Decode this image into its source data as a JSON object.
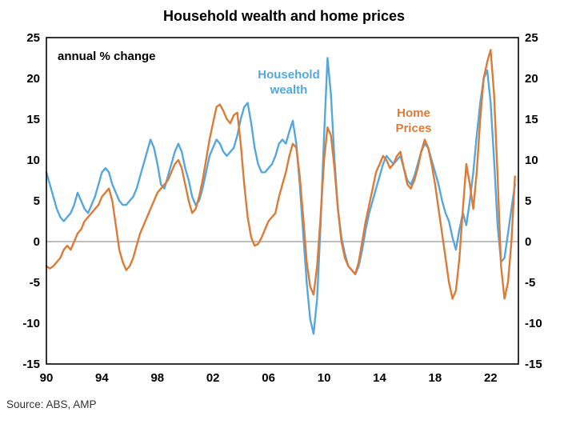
{
  "chart_data": {
    "type": "line",
    "title": "Household wealth and home prices",
    "annotation": "annual % change",
    "source": "Source: ABS, AMP",
    "xlabel": "",
    "ylabel": "",
    "xlim": [
      1990,
      2024
    ],
    "ylim": [
      -15,
      25
    ],
    "grid": false,
    "zero_line": true,
    "x_start": 1990,
    "x_step": 0.25,
    "x_unit": "year (quarterly)",
    "yticks": [
      25,
      20,
      15,
      10,
      5,
      0,
      -5,
      -10,
      -15
    ],
    "xticks": [
      {
        "label": "90",
        "year": 1990
      },
      {
        "label": "94",
        "year": 1994
      },
      {
        "label": "98",
        "year": 1998
      },
      {
        "label": "02",
        "year": 2002
      },
      {
        "label": "06",
        "year": 2006
      },
      {
        "label": "10",
        "year": 2010
      },
      {
        "label": "14",
        "year": 2014
      },
      {
        "label": "18",
        "year": 2018
      },
      {
        "label": "22",
        "year": 2022
      }
    ],
    "series_labels": {
      "household": "Household\nwealth",
      "home": "Home\nPrices"
    },
    "series": [
      {
        "name": "Household wealth",
        "color": "#56A7DC",
        "values": [
          8.5,
          7.0,
          5.5,
          4.0,
          3.0,
          2.5,
          3.0,
          3.5,
          4.5,
          6.0,
          5.0,
          4.0,
          3.5,
          4.5,
          5.5,
          7.0,
          8.5,
          9.0,
          8.5,
          7.0,
          6.0,
          5.0,
          4.5,
          4.5,
          5.0,
          5.5,
          6.5,
          8.0,
          9.5,
          11.0,
          12.5,
          11.5,
          9.5,
          7.0,
          6.5,
          8.0,
          9.5,
          11.0,
          12.0,
          11.0,
          9.0,
          7.5,
          5.5,
          4.5,
          5.0,
          6.5,
          8.5,
          10.5,
          11.5,
          12.5,
          12.0,
          11.0,
          10.5,
          11.0,
          11.5,
          13.0,
          15.0,
          16.5,
          17.0,
          14.5,
          11.5,
          9.5,
          8.5,
          8.5,
          9.0,
          9.5,
          10.5,
          12.0,
          12.5,
          12.0,
          13.5,
          14.8,
          12.0,
          7.0,
          1.0,
          -5.0,
          -9.5,
          -11.3,
          -7.0,
          2.0,
          13.0,
          22.5,
          18.0,
          10.0,
          4.0,
          0.5,
          -1.5,
          -3.0,
          -3.5,
          -4.0,
          -3.0,
          -1.0,
          1.5,
          3.5,
          5.0,
          6.5,
          8.0,
          9.5,
          10.5,
          10.0,
          9.5,
          10.0,
          10.5,
          9.0,
          7.5,
          7.0,
          8.0,
          9.5,
          11.0,
          12.0,
          11.5,
          10.0,
          8.5,
          7.0,
          5.0,
          3.5,
          2.5,
          0.5,
          -1.0,
          1.5,
          3.5,
          2.0,
          5.0,
          8.5,
          13.0,
          17.0,
          20.0,
          21.0,
          17.0,
          10.0,
          2.0,
          -2.5,
          -2.0,
          1.0,
          4.0,
          7.0
        ]
      },
      {
        "name": "Home Prices",
        "color": "#DC7B38",
        "values": [
          -3.0,
          -3.3,
          -3.0,
          -2.5,
          -2.0,
          -1.0,
          -0.5,
          -1.0,
          0.0,
          1.0,
          1.5,
          2.5,
          3.0,
          3.5,
          4.0,
          4.5,
          5.5,
          6.0,
          6.5,
          5.0,
          2.0,
          -1.0,
          -2.5,
          -3.5,
          -3.0,
          -2.0,
          -0.5,
          1.0,
          2.0,
          3.0,
          4.0,
          5.0,
          6.0,
          6.5,
          7.0,
          7.5,
          8.5,
          9.5,
          10.0,
          9.0,
          7.0,
          5.0,
          3.5,
          4.0,
          5.5,
          7.5,
          10.0,
          12.5,
          14.5,
          16.5,
          16.8,
          16.0,
          15.0,
          14.5,
          15.5,
          15.8,
          12.0,
          7.0,
          3.0,
          0.5,
          -0.5,
          -0.3,
          0.5,
          1.5,
          2.5,
          3.0,
          3.5,
          5.5,
          7.0,
          8.5,
          10.5,
          12.0,
          11.5,
          8.0,
          3.0,
          -2.5,
          -5.5,
          -6.5,
          -3.0,
          3.0,
          10.0,
          14.0,
          13.0,
          9.0,
          4.0,
          0.0,
          -2.0,
          -3.0,
          -3.5,
          -4.0,
          -2.5,
          0.0,
          2.5,
          4.5,
          6.5,
          8.5,
          9.5,
          10.5,
          10.0,
          9.0,
          9.5,
          10.5,
          11.0,
          9.0,
          7.0,
          6.5,
          7.5,
          9.0,
          11.0,
          12.5,
          11.5,
          9.5,
          7.0,
          4.0,
          1.0,
          -2.0,
          -5.0,
          -7.0,
          -6.0,
          -2.0,
          4.0,
          9.5,
          7.0,
          4.0,
          8.5,
          15.0,
          20.0,
          22.0,
          23.5,
          18.0,
          8.0,
          -3.0,
          -7.0,
          -5.0,
          0.0,
          8.0
        ]
      }
    ]
  }
}
